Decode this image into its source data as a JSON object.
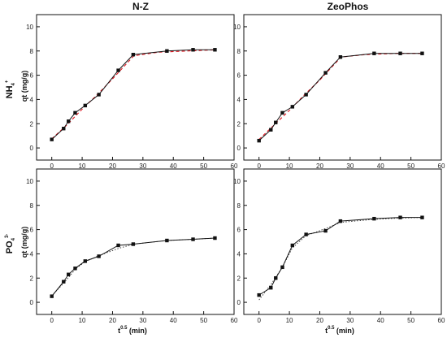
{
  "figure": {
    "col_titles": [
      "N-Z",
      "ZeoPhos"
    ],
    "row_labels": [
      {
        "base": "NH",
        "sub": "4",
        "sup": "+"
      },
      {
        "base": "PO",
        "sub": "4",
        "sup": "3-"
      }
    ],
    "ylabel": "qt (mg/g)",
    "xlabel": {
      "base": "t",
      "sup": "0.5",
      "unit": " (min)"
    }
  },
  "chart_data": [
    {
      "type": "line",
      "title": "N-Z",
      "row": "NH4+",
      "xlim": [
        -5,
        60
      ],
      "ylim": [
        -1,
        11
      ],
      "xticks": [
        0,
        10,
        20,
        30,
        40,
        50,
        60
      ],
      "yticks": [
        0,
        2,
        4,
        6,
        8,
        10
      ],
      "series": [
        {
          "style": "solid-black-squares",
          "x": [
            0,
            3.9,
            5.5,
            7.7,
            11,
            15.5,
            21.9,
            26.8,
            37.9,
            46.5,
            53.7
          ],
          "y": [
            0.7,
            1.6,
            2.2,
            2.9,
            3.5,
            4.4,
            6.4,
            7.7,
            8.0,
            8.1,
            8.1
          ]
        },
        {
          "style": "dashed-red",
          "x": [
            0,
            5,
            10,
            15,
            20,
            27,
            35,
            45,
            54
          ],
          "y": [
            0.75,
            1.9,
            3.2,
            4.4,
            5.7,
            7.6,
            7.9,
            8.0,
            8.1
          ]
        }
      ]
    },
    {
      "type": "line",
      "title": "ZeoPhos",
      "row": "NH4+",
      "xlim": [
        -5,
        60
      ],
      "ylim": [
        -1,
        11
      ],
      "xticks": [
        0,
        10,
        20,
        30,
        40,
        50,
        60
      ],
      "yticks": [
        0,
        2,
        4,
        6,
        8,
        10
      ],
      "series": [
        {
          "style": "solid-black-squares",
          "x": [
            0,
            3.9,
            5.5,
            7.7,
            11,
            15.5,
            21.9,
            26.8,
            37.9,
            46.5,
            53.7
          ],
          "y": [
            0.6,
            1.5,
            2.1,
            2.9,
            3.4,
            4.4,
            6.2,
            7.5,
            7.8,
            7.8,
            7.8
          ]
        },
        {
          "style": "dashed-red",
          "x": [
            0,
            5,
            10,
            15,
            20,
            27,
            35,
            45,
            54
          ],
          "y": [
            0.7,
            1.9,
            3.1,
            4.4,
            5.6,
            7.5,
            7.7,
            7.8,
            7.8
          ]
        }
      ]
    },
    {
      "type": "line",
      "title": "",
      "row": "PO43-",
      "xlim": [
        -5,
        60
      ],
      "ylim": [
        -1,
        11
      ],
      "xticks": [
        0,
        10,
        20,
        30,
        40,
        50,
        60
      ],
      "yticks": [
        0,
        2,
        4,
        6,
        8,
        10
      ],
      "series": [
        {
          "style": "solid-black-squares",
          "x": [
            0,
            3.9,
            5.5,
            7.7,
            11,
            15.5,
            21.9,
            26.8,
            37.9,
            46.5,
            53.7
          ],
          "y": [
            0.5,
            1.7,
            2.3,
            2.8,
            3.4,
            3.8,
            4.7,
            4.8,
            5.1,
            5.2,
            5.3
          ]
        },
        {
          "style": "dotted-black",
          "x": [
            0,
            4,
            8,
            11,
            15.5,
            22,
            27,
            38,
            46.5,
            53.7
          ],
          "y": [
            0.55,
            1.6,
            2.8,
            3.35,
            3.85,
            4.45,
            4.8,
            5.1,
            5.2,
            5.3
          ]
        }
      ]
    },
    {
      "type": "line",
      "title": "",
      "row": "PO43-",
      "xlim": [
        -5,
        60
      ],
      "ylim": [
        -1,
        11
      ],
      "xticks": [
        0,
        10,
        20,
        30,
        40,
        50,
        60
      ],
      "yticks": [
        0,
        2,
        4,
        6,
        8,
        10
      ],
      "series": [
        {
          "style": "solid-black-squares",
          "x": [
            0,
            3.9,
            5.5,
            7.7,
            11,
            15.5,
            21.9,
            26.8,
            37.9,
            46.5,
            53.7
          ],
          "y": [
            0.6,
            1.2,
            2.0,
            2.9,
            4.7,
            5.6,
            5.9,
            6.7,
            6.9,
            7.0,
            7.0
          ]
        },
        {
          "style": "dotted-black",
          "x": [
            0,
            4,
            7.7,
            11,
            15.5,
            22,
            27,
            38,
            46.5,
            53.7
          ],
          "y": [
            0.2,
            1.5,
            2.9,
            4.5,
            5.5,
            6.1,
            6.6,
            6.85,
            6.95,
            7.0
          ]
        }
      ]
    }
  ]
}
